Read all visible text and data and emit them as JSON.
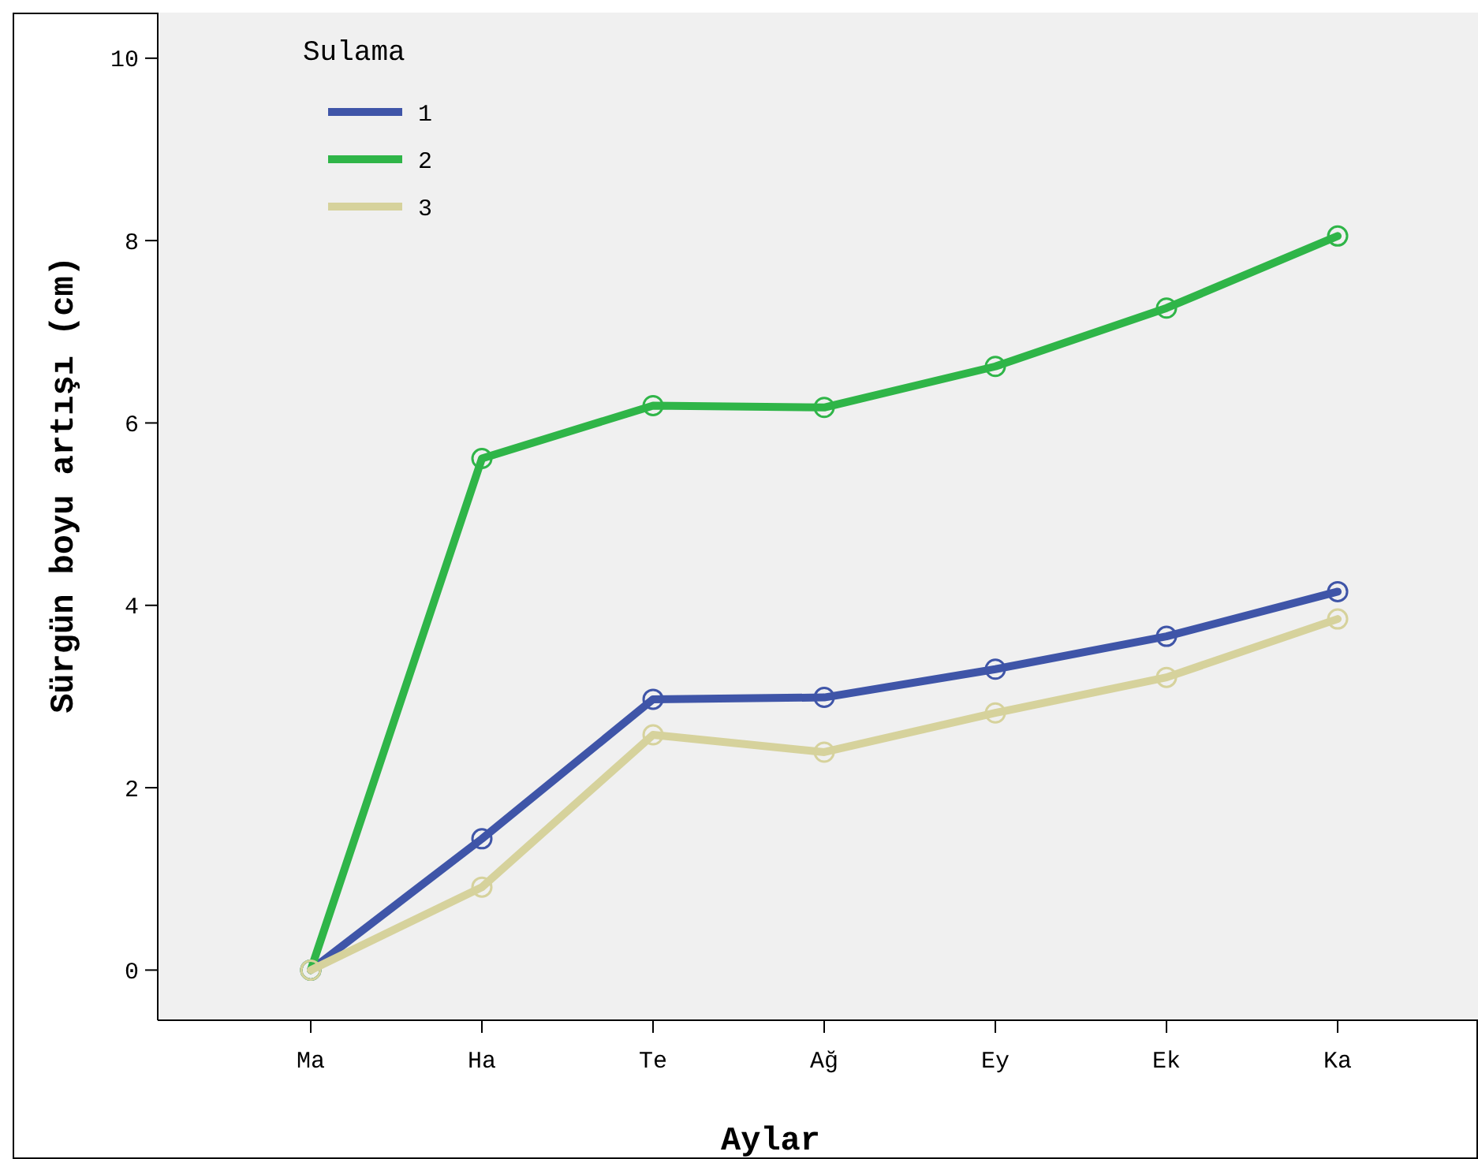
{
  "chart_data": {
    "type": "line",
    "xlabel": "Aylar",
    "ylabel": "Sürgün boyu artışı (cm)",
    "legend_title": "Sulama",
    "categories": [
      "Ma",
      "Ha",
      "Te",
      "Ağ",
      "Ey",
      "Ek",
      "Ka"
    ],
    "series": [
      {
        "name": "1",
        "color": "#3f55a8",
        "values": [
          0,
          1.44,
          2.97,
          2.99,
          3.3,
          3.66,
          4.15
        ]
      },
      {
        "name": "2",
        "color": "#2fb548",
        "values": [
          0,
          5.61,
          6.19,
          6.17,
          6.62,
          7.26,
          8.05
        ]
      },
      {
        "name": "3",
        "color": "#d6d29c",
        "values": [
          0,
          0.91,
          2.58,
          2.39,
          2.82,
          3.21,
          3.85
        ]
      }
    ],
    "ylim": [
      -0.55,
      10.5
    ],
    "yticks": [
      0,
      2,
      4,
      6,
      8,
      10
    ],
    "grid": false,
    "legend": "top left",
    "marker": "circle",
    "line_style": "solid"
  }
}
